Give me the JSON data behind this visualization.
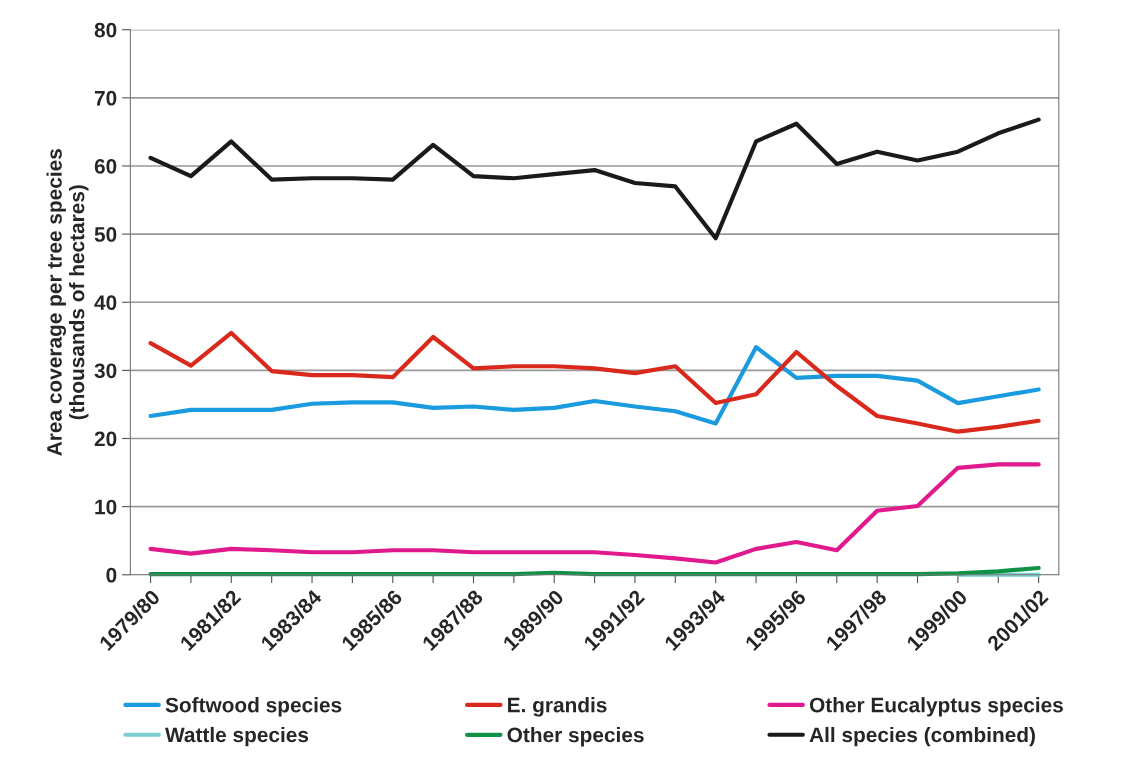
{
  "chart_data": {
    "type": "line",
    "ylabel": "Area coverage per tree species\n(thousands of hectares)",
    "categories": [
      "1979/80",
      null,
      "1981/82",
      null,
      "1983/84",
      null,
      "1985/86",
      null,
      "1987/88",
      null,
      "1989/90",
      null,
      "1991/92",
      null,
      "1993/94",
      null,
      "1995/96",
      null,
      "1997/98",
      null,
      "1999/00",
      null,
      "2001/02"
    ],
    "series": [
      {
        "name": "Softwood species",
        "color": "#1a9be0",
        "values": [
          23.3,
          24.2,
          24.2,
          24.2,
          25.1,
          25.3,
          25.3,
          24.5,
          24.7,
          24.2,
          24.5,
          25.5,
          24.7,
          24.0,
          22.2,
          33.4,
          28.9,
          29.2,
          29.2,
          28.5,
          25.2,
          26.2,
          27.2
        ]
      },
      {
        "name": "E. grandis",
        "color": "#d9291c",
        "values": [
          34.0,
          30.7,
          35.5,
          29.9,
          29.3,
          29.3,
          29.0,
          34.9,
          30.3,
          30.6,
          30.6,
          30.3,
          29.6,
          30.6,
          25.2,
          26.5,
          32.7,
          27.7,
          23.3,
          22.2,
          21.0,
          21.7,
          22.6
        ]
      },
      {
        "name": "Other Eucalyptus species",
        "color": "#e0198c",
        "values": [
          3.8,
          3.1,
          3.8,
          3.6,
          3.3,
          3.3,
          3.6,
          3.6,
          3.3,
          3.3,
          3.3,
          3.3,
          2.9,
          2.4,
          1.8,
          3.8,
          4.8,
          3.6,
          9.4,
          10.1,
          15.7,
          16.2,
          16.2
        ]
      },
      {
        "name": "Wattle species",
        "color": "#7ccfd0",
        "values": [
          null,
          null,
          null,
          null,
          null,
          null,
          null,
          null,
          null,
          null,
          null,
          null,
          null,
          null,
          null,
          null,
          null,
          null,
          null,
          null,
          0,
          0,
          0
        ]
      },
      {
        "name": "Other species",
        "color": "#0f9146",
        "values": [
          0.1,
          0.1,
          0.1,
          0.1,
          0.1,
          0.1,
          0.1,
          0.1,
          0.1,
          0.1,
          0.3,
          0.1,
          0.1,
          0.1,
          0.1,
          0.1,
          0.1,
          0.1,
          0.1,
          0.1,
          0.2,
          0.5,
          1.0
        ]
      },
      {
        "name": "All species (combined)",
        "color": "#1a1a1a",
        "values": [
          61.2,
          58.5,
          63.6,
          58.0,
          58.2,
          58.2,
          58.0,
          63.1,
          58.5,
          58.2,
          58.8,
          59.4,
          57.5,
          57.0,
          49.4,
          63.6,
          66.2,
          60.3,
          62.1,
          60.8,
          62.1,
          64.8,
          66.8
        ]
      }
    ],
    "ylim": [
      0,
      80
    ],
    "yticks": [
      0,
      10,
      20,
      30,
      40,
      50,
      60,
      70,
      80
    ],
    "grid": "y",
    "legend": "bottom",
    "line_style": "solid"
  }
}
